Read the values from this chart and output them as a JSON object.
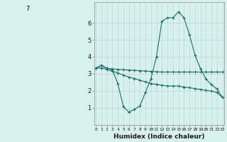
{
  "xlabel": "Humidex (Indice chaleur)",
  "background_color": "#d8f0ee",
  "grid_color": "#b8dbd8",
  "line_color": "#1a6e68",
  "x_ticks": [
    0,
    1,
    2,
    3,
    4,
    5,
    6,
    7,
    8,
    9,
    10,
    11,
    12,
    13,
    14,
    15,
    16,
    17,
    18,
    19,
    20,
    21,
    22,
    23
  ],
  "ylim": [
    0,
    7.2
  ],
  "xlim": [
    -0.3,
    23.3
  ],
  "line1_x": [
    0,
    1,
    2,
    3,
    4,
    5,
    6,
    7,
    8,
    9,
    10,
    11,
    12,
    13,
    14,
    15,
    16,
    17,
    18,
    19,
    20,
    21,
    22,
    23
  ],
  "line1_y": [
    3.32,
    3.5,
    3.32,
    3.28,
    3.26,
    3.24,
    3.22,
    3.2,
    3.18,
    3.16,
    3.14,
    3.12,
    3.1,
    3.1,
    3.1,
    3.1,
    3.1,
    3.1,
    3.1,
    3.1,
    3.1,
    3.1,
    3.1,
    3.1
  ],
  "line2_x": [
    0,
    1,
    2,
    3,
    4,
    5,
    6,
    7,
    8,
    9,
    10,
    11,
    12,
    13,
    14,
    15,
    16,
    17,
    18,
    19,
    20,
    21,
    22,
    23
  ],
  "line2_y": [
    3.32,
    3.5,
    3.32,
    3.25,
    2.4,
    1.05,
    0.75,
    0.9,
    1.1,
    1.9,
    2.7,
    4.0,
    6.1,
    6.3,
    6.3,
    6.65,
    6.3,
    5.3,
    4.1,
    3.3,
    2.7,
    2.35,
    2.1,
    1.6
  ],
  "line3_x": [
    0,
    1,
    2,
    3,
    4,
    5,
    6,
    7,
    8,
    9,
    10,
    11,
    12,
    13,
    14,
    15,
    16,
    17,
    18,
    19,
    20,
    21,
    22,
    23
  ],
  "line3_y": [
    3.32,
    3.35,
    3.25,
    3.15,
    3.05,
    2.92,
    2.8,
    2.72,
    2.62,
    2.52,
    2.42,
    2.38,
    2.32,
    2.28,
    2.28,
    2.28,
    2.22,
    2.18,
    2.12,
    2.08,
    2.02,
    1.98,
    1.9,
    1.6
  ],
  "yticks": [
    1,
    2,
    3,
    4,
    5,
    6
  ],
  "ytop_label": "7"
}
